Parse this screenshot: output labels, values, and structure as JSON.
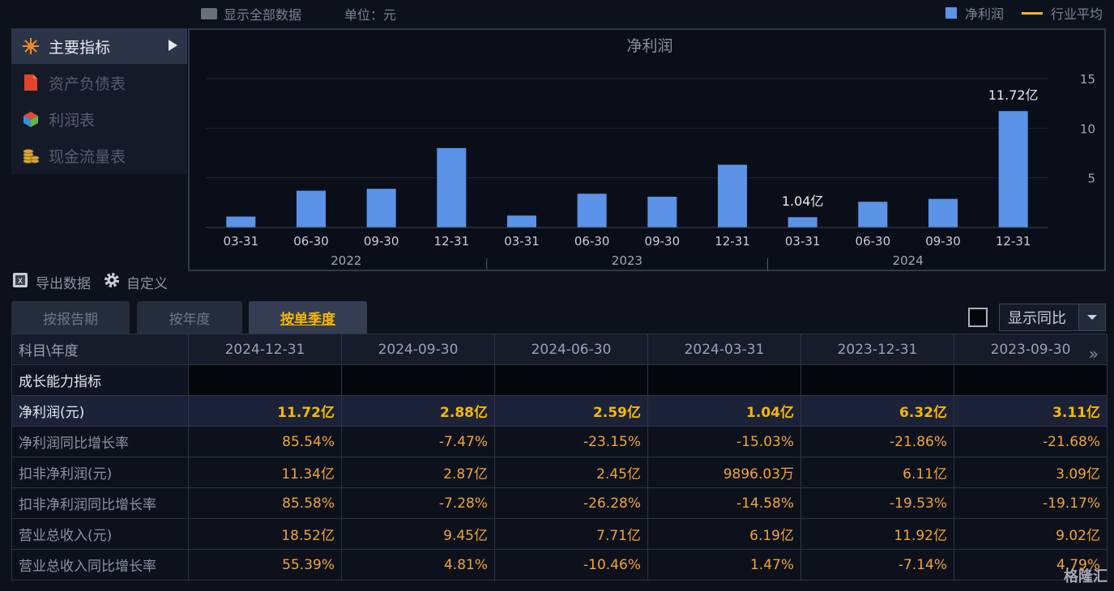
{
  "topbar": {
    "show_all_label": "显示全部数据",
    "unit_label": "单位：元",
    "legend_net_profit": "净利润",
    "legend_industry_avg": "行业平均"
  },
  "sidebar": {
    "items": [
      {
        "label": "主要指标",
        "icon": "star-icon",
        "active": true
      },
      {
        "label": "资产负债表",
        "icon": "document-icon",
        "active": false
      },
      {
        "label": "利润表",
        "icon": "cube-icon",
        "active": false
      },
      {
        "label": "现金流量表",
        "icon": "coins-icon",
        "active": false
      }
    ]
  },
  "chart_data": {
    "type": "bar",
    "title": "净利润",
    "categories": [
      "03-31",
      "06-30",
      "09-30",
      "12-31",
      "03-31",
      "06-30",
      "09-30",
      "12-31",
      "03-31",
      "06-30",
      "09-30",
      "12-31"
    ],
    "groups": [
      {
        "label": "2022",
        "count": 4
      },
      {
        "label": "2023",
        "count": 4
      },
      {
        "label": "2024",
        "count": 4
      }
    ],
    "series": [
      {
        "values": [
          1.1,
          3.7,
          3.9,
          8.0,
          1.2,
          3.4,
          3.1,
          6.32,
          1.04,
          2.59,
          2.88,
          11.72
        ],
        "color": "#5b93e6"
      }
    ],
    "data_labels": [
      {
        "index": 8,
        "text": "1.04亿"
      },
      {
        "index": 11,
        "text": "11.72亿"
      }
    ],
    "yticks": [
      "5",
      "10",
      "15"
    ],
    "ylim": [
      0,
      15
    ],
    "grid": true
  },
  "tools": {
    "export_label": "导出数据",
    "custom_label": "自定义"
  },
  "tabs": [
    {
      "label": "按报告期",
      "active": false
    },
    {
      "label": "按年度",
      "active": false
    },
    {
      "label": "按单季度",
      "active": true
    }
  ],
  "yoy": {
    "select_value": "显示同比"
  },
  "table": {
    "corner": "科目\\年度",
    "columns": [
      "2024-12-31",
      "2024-09-30",
      "2024-06-30",
      "2024-03-31",
      "2023-12-31",
      "2023-09-30"
    ],
    "rows": [
      {
        "label": "成长能力指标",
        "type": "section",
        "values": [
          "",
          "",
          "",
          "",
          "",
          ""
        ]
      },
      {
        "label": "净利润(元)",
        "type": "hl",
        "values": [
          "11.72亿",
          "2.88亿",
          "2.59亿",
          "1.04亿",
          "6.32亿",
          "3.11亿"
        ]
      },
      {
        "label": "净利润同比增长率",
        "type": "normal",
        "values": [
          "85.54%",
          "-7.47%",
          "-23.15%",
          "-15.03%",
          "-21.86%",
          "-21.68%"
        ]
      },
      {
        "label": "扣非净利润(元)",
        "type": "normal",
        "values": [
          "11.34亿",
          "2.87亿",
          "2.45亿",
          "9896.03万",
          "6.11亿",
          "3.09亿"
        ]
      },
      {
        "label": "扣非净利润同比增长率",
        "type": "normal",
        "values": [
          "85.58%",
          "-7.28%",
          "-26.28%",
          "-14.58%",
          "-19.53%",
          "-19.17%"
        ]
      },
      {
        "label": "营业总收入(元)",
        "type": "normal",
        "values": [
          "18.52亿",
          "9.45亿",
          "7.71亿",
          "6.19亿",
          "11.92亿",
          "9.02亿"
        ]
      },
      {
        "label": "营业总收入同比增长率",
        "type": "normal",
        "values": [
          "55.39%",
          "4.81%",
          "-10.46%",
          "1.47%",
          "-7.14%",
          "4.79%"
        ]
      }
    ]
  },
  "watermark": "格隆汇"
}
